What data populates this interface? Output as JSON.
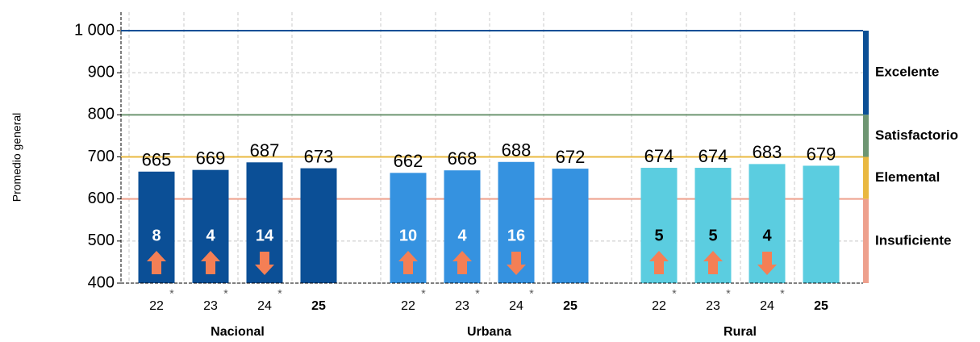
{
  "chart_data": {
    "type": "bar",
    "y_axis_label": "Promedio general",
    "ylim": [
      400,
      1000
    ],
    "yticks": [
      400,
      500,
      600,
      700,
      800,
      900,
      {
        "value": 1000,
        "label": "1 000"
      }
    ],
    "grid": true,
    "arrow_color": "#f47f55",
    "groups": [
      {
        "name": "Nacional",
        "color": "#0b4f96",
        "label_color": "#ffffff",
        "categories": [
          "22",
          "23",
          "24",
          "25"
        ],
        "notes": [
          "*",
          "*",
          "*",
          null
        ],
        "values": [
          665,
          669,
          687,
          673
        ],
        "differences": [
          8,
          4,
          14
        ],
        "difference_directions": [
          "up",
          "up",
          "down"
        ]
      },
      {
        "name": "Urbana",
        "color": "#3592e0",
        "label_color": "#ffffff",
        "categories": [
          "22",
          "23",
          "24",
          "25"
        ],
        "notes": [
          "*",
          "*",
          "*",
          null
        ],
        "values": [
          662,
          668,
          688,
          672
        ],
        "differences": [
          10,
          4,
          16
        ],
        "difference_directions": [
          "up",
          "up",
          "down"
        ]
      },
      {
        "name": "Rural",
        "color": "#5bcde0",
        "label_color": "#000000",
        "categories": [
          "22",
          "23",
          "24",
          "25"
        ],
        "notes": [
          "*",
          "*",
          "*",
          null
        ],
        "values": [
          674,
          674,
          683,
          679
        ],
        "differences": [
          5,
          5,
          4
        ],
        "difference_directions": [
          "up",
          "up",
          "down"
        ]
      }
    ],
    "levels": [
      {
        "name": "Excelente",
        "range": [
          800,
          1000
        ],
        "color": "#0b4f96"
      },
      {
        "name": "Satisfactorio",
        "range": [
          700,
          800
        ],
        "color": "#6e9672"
      },
      {
        "name": "Elemental",
        "range": [
          600,
          700
        ],
        "color": "#e9b840"
      },
      {
        "name": "Insuficiente",
        "range": [
          400,
          600
        ],
        "color": "#eea08d"
      }
    ]
  }
}
